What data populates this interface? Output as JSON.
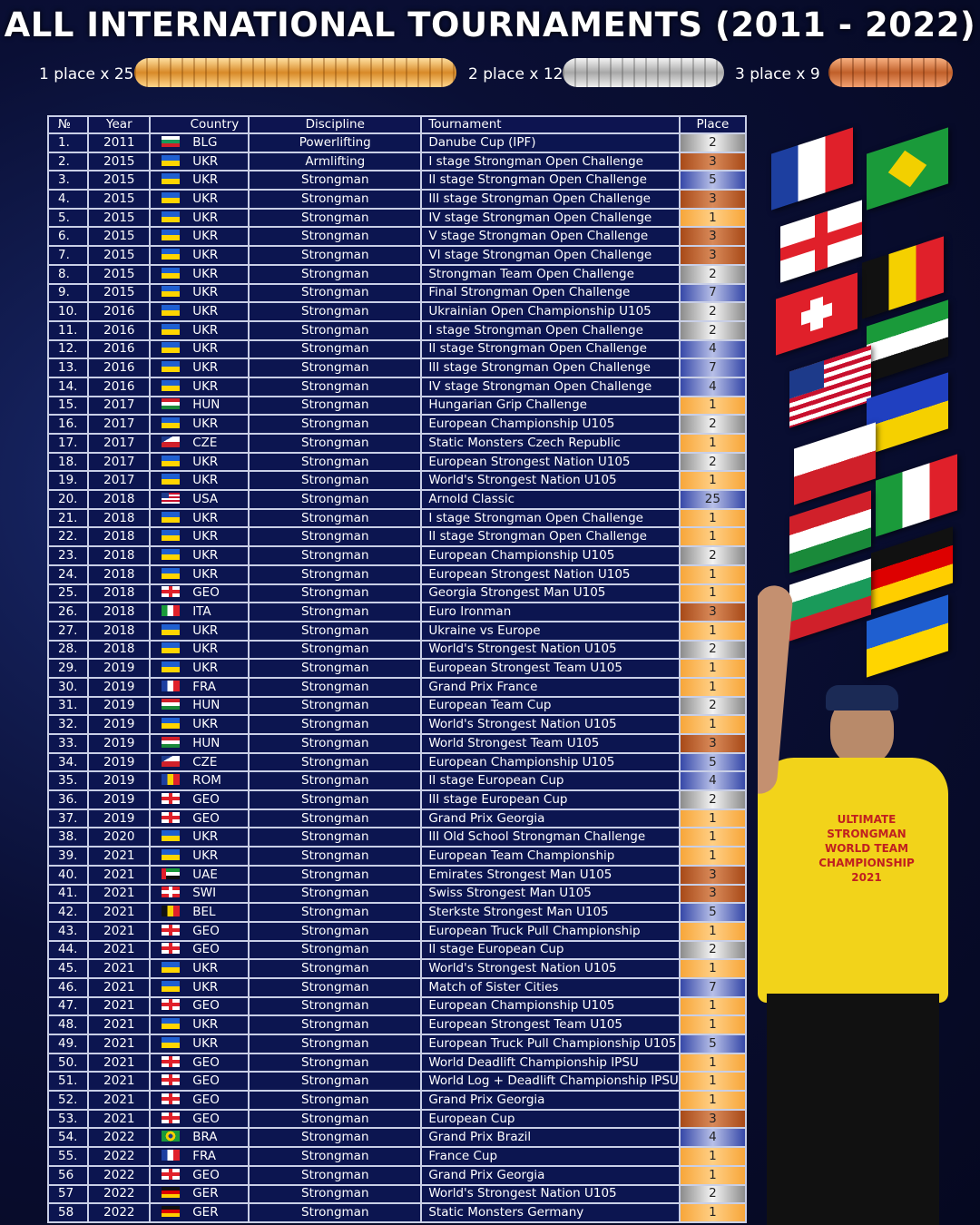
{
  "title": "ALL INTERNATIONAL TOURNAMENTS (2011 - 2022)",
  "medals": [
    {
      "label": "1 place x 25",
      "type": "gold",
      "color": "#e9a94a"
    },
    {
      "label": "2 place x 12",
      "type": "silver",
      "color": "#c8c8c8"
    },
    {
      "label": "3 place x 9",
      "type": "bronze",
      "color": "#c0602a"
    }
  ],
  "colors": {
    "first": "#f7a63a",
    "second": "#c8c8c8",
    "third": "#b8622a",
    "other": "#4a5bb0",
    "table_bg": "#0c1550"
  },
  "table": {
    "headers": [
      "№",
      "Year",
      "Country",
      "Discipline",
      "Tournament",
      "Place"
    ],
    "rows": [
      [
        "1.",
        "2011",
        "BLG",
        "Powerlifting",
        "Danube Cup (IPF)",
        "2"
      ],
      [
        "2.",
        "2015",
        "UKR",
        "Armlifting",
        "I stage Strongman Open Challenge",
        "3"
      ],
      [
        "3.",
        "2015",
        "UKR",
        "Strongman",
        "II stage Strongman Open Challenge",
        "5"
      ],
      [
        "4.",
        "2015",
        "UKR",
        "Strongman",
        "III stage Strongman Open Challenge",
        "3"
      ],
      [
        "5.",
        "2015",
        "UKR",
        "Strongman",
        "IV stage Strongman Open Challenge",
        "1"
      ],
      [
        "6.",
        "2015",
        "UKR",
        "Strongman",
        "V stage Strongman Open Challenge",
        "3"
      ],
      [
        "7.",
        "2015",
        "UKR",
        "Strongman",
        "VI stage Strongman Open Challenge",
        "3"
      ],
      [
        "8.",
        "2015",
        "UKR",
        "Strongman",
        "Strongman Team Open Challenge",
        "2"
      ],
      [
        "9.",
        "2015",
        "UKR",
        "Strongman",
        "Final Strongman Open Challenge",
        "7"
      ],
      [
        "10.",
        "2016",
        "UKR",
        "Strongman",
        "Ukrainian Open Championship U105",
        "2"
      ],
      [
        "11.",
        "2016",
        "UKR",
        "Strongman",
        "I stage Strongman Open Challenge",
        "2"
      ],
      [
        "12.",
        "2016",
        "UKR",
        "Strongman",
        "II stage Strongman Open Challenge",
        "4"
      ],
      [
        "13.",
        "2016",
        "UKR",
        "Strongman",
        "III stage Strongman Open Challenge",
        "7"
      ],
      [
        "14.",
        "2016",
        "UKR",
        "Strongman",
        "IV stage Strongman Open Challenge",
        "4"
      ],
      [
        "15.",
        "2017",
        "HUN",
        "Strongman",
        "Hungarian Grip Challenge",
        "1"
      ],
      [
        "16.",
        "2017",
        "UKR",
        "Strongman",
        "European Championship U105",
        "2"
      ],
      [
        "17.",
        "2017",
        "CZE",
        "Strongman",
        "Static Monsters Czech Republic",
        "1"
      ],
      [
        "18.",
        "2017",
        "UKR",
        "Strongman",
        "European Strongest Nation U105",
        "2"
      ],
      [
        "19.",
        "2017",
        "UKR",
        "Strongman",
        "World's Strongest Nation U105",
        "1"
      ],
      [
        "20.",
        "2018",
        "USA",
        "Strongman",
        "Arnold Classic",
        "25"
      ],
      [
        "21.",
        "2018",
        "UKR",
        "Strongman",
        "I stage Strongman Open Challenge",
        "1"
      ],
      [
        "22.",
        "2018",
        "UKR",
        "Strongman",
        "II stage Strongman Open Challenge",
        "1"
      ],
      [
        "23.",
        "2018",
        "UKR",
        "Strongman",
        "European Championship U105",
        "2"
      ],
      [
        "24.",
        "2018",
        "UKR",
        "Strongman",
        "European Strongest Nation U105",
        "1"
      ],
      [
        "25.",
        "2018",
        "GEO",
        "Strongman",
        "Georgia Strongest Man U105",
        "1"
      ],
      [
        "26.",
        "2018",
        "ITA",
        "Strongman",
        "Euro Ironman",
        "3"
      ],
      [
        "27.",
        "2018",
        "UKR",
        "Strongman",
        "Ukraine vs Europe",
        "1"
      ],
      [
        "28.",
        "2018",
        "UKR",
        "Strongman",
        "World's Strongest Nation U105",
        "2"
      ],
      [
        "29.",
        "2019",
        "UKR",
        "Strongman",
        "European Strongest Team U105",
        "1"
      ],
      [
        "30.",
        "2019",
        "FRA",
        "Strongman",
        "Grand Prix France",
        "1"
      ],
      [
        "31.",
        "2019",
        "HUN",
        "Strongman",
        "European Team Cup",
        "2"
      ],
      [
        "32.",
        "2019",
        "UKR",
        "Strongman",
        "World's Strongest Nation U105",
        "1"
      ],
      [
        "33.",
        "2019",
        "HUN",
        "Strongman",
        "World Strongest Team U105",
        "3"
      ],
      [
        "34.",
        "2019",
        "CZE",
        "Strongman",
        "European Championship U105",
        "5"
      ],
      [
        "35.",
        "2019",
        "ROM",
        "Strongman",
        "II stage European Cup",
        "4"
      ],
      [
        "36.",
        "2019",
        "GEO",
        "Strongman",
        "III stage European Cup",
        "2"
      ],
      [
        "37.",
        "2019",
        "GEO",
        "Strongman",
        "Grand Prix Georgia",
        "1"
      ],
      [
        "38.",
        "2020",
        "UKR",
        "Strongman",
        "III Old School Strongman Challenge",
        "1"
      ],
      [
        "39.",
        "2021",
        "UKR",
        "Strongman",
        "European Team Championship",
        "1"
      ],
      [
        "40.",
        "2021",
        "UAE",
        "Strongman",
        "Emirates Strongest Man U105",
        "3"
      ],
      [
        "41.",
        "2021",
        "SWI",
        "Strongman",
        "Swiss Strongest Man U105",
        "3"
      ],
      [
        "42.",
        "2021",
        "BEL",
        "Strongman",
        "Sterkste Strongest Man U105",
        "5"
      ],
      [
        "43.",
        "2021",
        "GEO",
        "Strongman",
        "European Truck Pull Championship",
        "1"
      ],
      [
        "44.",
        "2021",
        "GEO",
        "Strongman",
        "II stage European Cup",
        "2"
      ],
      [
        "45.",
        "2021",
        "UKR",
        "Strongman",
        "World's Strongest Nation U105",
        "1"
      ],
      [
        "46.",
        "2021",
        "UKR",
        "Strongman",
        "Match of Sister Cities",
        "7"
      ],
      [
        "47.",
        "2021",
        "GEO",
        "Strongman",
        "European Championship U105",
        "1"
      ],
      [
        "48.",
        "2021",
        "UKR",
        "Strongman",
        "European Strongest Team U105",
        "1"
      ],
      [
        "49.",
        "2021",
        "UKR",
        "Strongman",
        "European Truck Pull Championship U105",
        "5"
      ],
      [
        "50.",
        "2021",
        "GEO",
        "Strongman",
        "World Deadlift Championship IPSU",
        "1"
      ],
      [
        "51.",
        "2021",
        "GEO",
        "Strongman",
        "World Log + Deadlift Championship IPSU",
        "1"
      ],
      [
        "52.",
        "2021",
        "GEO",
        "Strongman",
        "Grand Prix Georgia",
        "1"
      ],
      [
        "53.",
        "2021",
        "GEO",
        "Strongman",
        "European Cup",
        "3"
      ],
      [
        "54.",
        "2022",
        "BRA",
        "Strongman",
        "Grand Prix Brazil",
        "4"
      ],
      [
        "55.",
        "2022",
        "FRA",
        "Strongman",
        "France Cup",
        "1"
      ],
      [
        "56",
        "2022",
        "GEO",
        "Strongman",
        "Grand Prix Georgia",
        "1"
      ],
      [
        "57",
        "2022",
        "GER",
        "Strongman",
        "World's Strongest Nation U105",
        "2"
      ],
      [
        "58",
        "2022",
        "GER",
        "Strongman",
        "Static Monsters Germany",
        "1"
      ]
    ]
  },
  "shirt": {
    "lines": [
      "ULTIMATE",
      "STRONGMAN",
      "WORLD TEAM",
      "CHAMPIONSHIP",
      "2021"
    ]
  },
  "icons": {
    "flag": "country-flag-icon",
    "medal": "medal-stack-icon"
  }
}
